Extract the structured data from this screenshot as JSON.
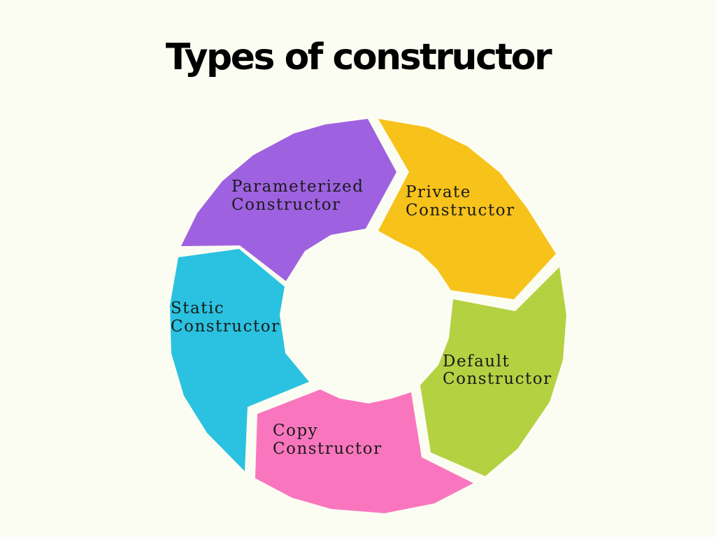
{
  "title": "Types of constructor",
  "segments": [
    {
      "id": "parameterized",
      "line1": "Parameterized",
      "line2": "Constructor",
      "color": "#9e62e0"
    },
    {
      "id": "private",
      "line1": "Private",
      "line2": "Constructor",
      "color": "#f7c21a"
    },
    {
      "id": "default",
      "line1": "Default",
      "line2": "Constructor",
      "color": "#b4d142"
    },
    {
      "id": "copy",
      "line1": "Copy",
      "line2": "Constructor",
      "color": "#f976be"
    },
    {
      "id": "static",
      "line1": "Static",
      "line2": "Constructor",
      "color": "#2ac2e0"
    }
  ]
}
